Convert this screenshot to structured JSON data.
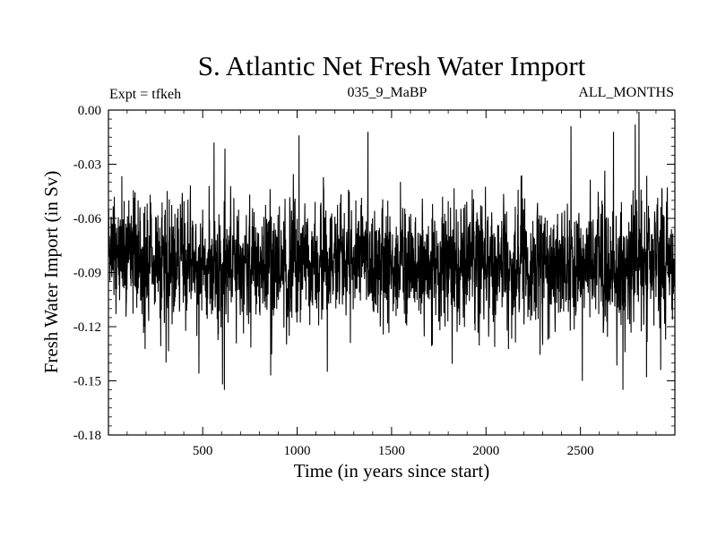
{
  "chart_data": {
    "type": "line",
    "title": "S. Atlantic Net Fresh Water Import",
    "subtitle_left": "Expt = tfkeh",
    "subtitle_center": "035_9_MaBP",
    "subtitle_right": "ALL_MONTHS",
    "xlabel": "Time (in years since start)",
    "ylabel": "Fresh Water Import (in Sv)",
    "xlim": [
      1,
      3000
    ],
    "ylim": [
      -0.18,
      0.0
    ],
    "xticks": [
      500,
      1000,
      1500,
      2000,
      2500
    ],
    "xtick_labels": [
      "500",
      "1000",
      "1500",
      "2000",
      "2500"
    ],
    "yticks": [
      0.0,
      -0.03,
      -0.06,
      -0.09,
      -0.12,
      -0.15,
      -0.18
    ],
    "ytick_labels": [
      "0.00",
      "-0.03",
      "-0.06",
      "-0.09",
      "-0.12",
      "-0.15",
      "-0.18"
    ],
    "grid": false,
    "series": [
      {
        "color": "#000000",
        "description": "Annual series, one point per year, oscillating about a mean of roughly -0.085 Sv",
        "n_points": 3000,
        "mean": -0.085,
        "std": 0.016,
        "x_start": 1,
        "x_step": 1,
        "notable_points": [
          {
            "x": 2810,
            "y": -0.001
          },
          {
            "x": 2790,
            "y": -0.008
          },
          {
            "x": 2450,
            "y": -0.009
          },
          {
            "x": 1375,
            "y": -0.012
          },
          {
            "x": 2675,
            "y": -0.012
          },
          {
            "x": 1010,
            "y": -0.014
          },
          {
            "x": 860,
            "y": -0.016
          },
          {
            "x": 560,
            "y": -0.018
          },
          {
            "x": 615,
            "y": -0.155
          },
          {
            "x": 605,
            "y": -0.152
          },
          {
            "x": 2725,
            "y": -0.155
          },
          {
            "x": 480,
            "y": -0.146
          },
          {
            "x": 2510,
            "y": -0.15
          },
          {
            "x": 2925,
            "y": -0.144
          },
          {
            "x": 1160,
            "y": -0.145
          },
          {
            "x": 860,
            "y": -0.147
          },
          {
            "x": 2850,
            "y": -0.148
          }
        ]
      }
    ]
  }
}
